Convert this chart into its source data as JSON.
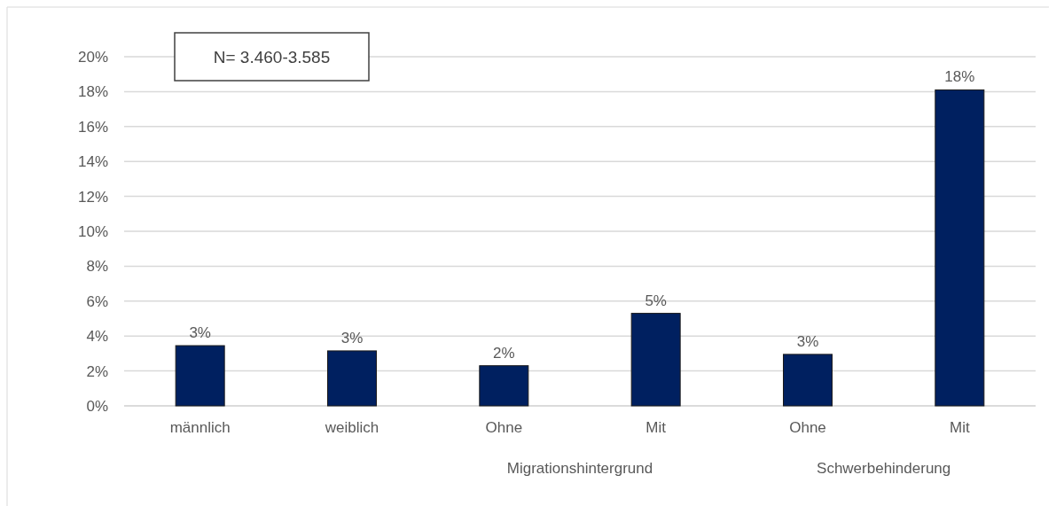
{
  "chart_data": {
    "type": "bar",
    "categories": [
      "männlich",
      "weiblich",
      "Ohne",
      "Mit",
      "Ohne",
      "Mit"
    ],
    "values": [
      3.45,
      3.15,
      2.3,
      5.3,
      2.95,
      18.1
    ],
    "value_labels": [
      "3%",
      "3%",
      "2%",
      "5%",
      "3%",
      "18%"
    ],
    "color": "#002060",
    "ylim": [
      0,
      20
    ],
    "yticks": [
      {
        "value": 0,
        "label": "0%"
      },
      {
        "value": 2,
        "label": "2%"
      },
      {
        "value": 4,
        "label": "4%"
      },
      {
        "value": 6,
        "label": "6%"
      },
      {
        "value": 8,
        "label": "8%"
      },
      {
        "value": 10,
        "label": "10%"
      },
      {
        "value": 12,
        "label": "12%"
      },
      {
        "value": 14,
        "label": "14%"
      },
      {
        "value": 16,
        "label": "16%"
      },
      {
        "value": 18,
        "label": "18%"
      },
      {
        "value": 20,
        "label": "20%"
      }
    ],
    "grid": "y",
    "annotations": [
      "N= 3.460-3.585",
      "Migrationshintergrund",
      "Schwerbehinderung"
    ]
  }
}
